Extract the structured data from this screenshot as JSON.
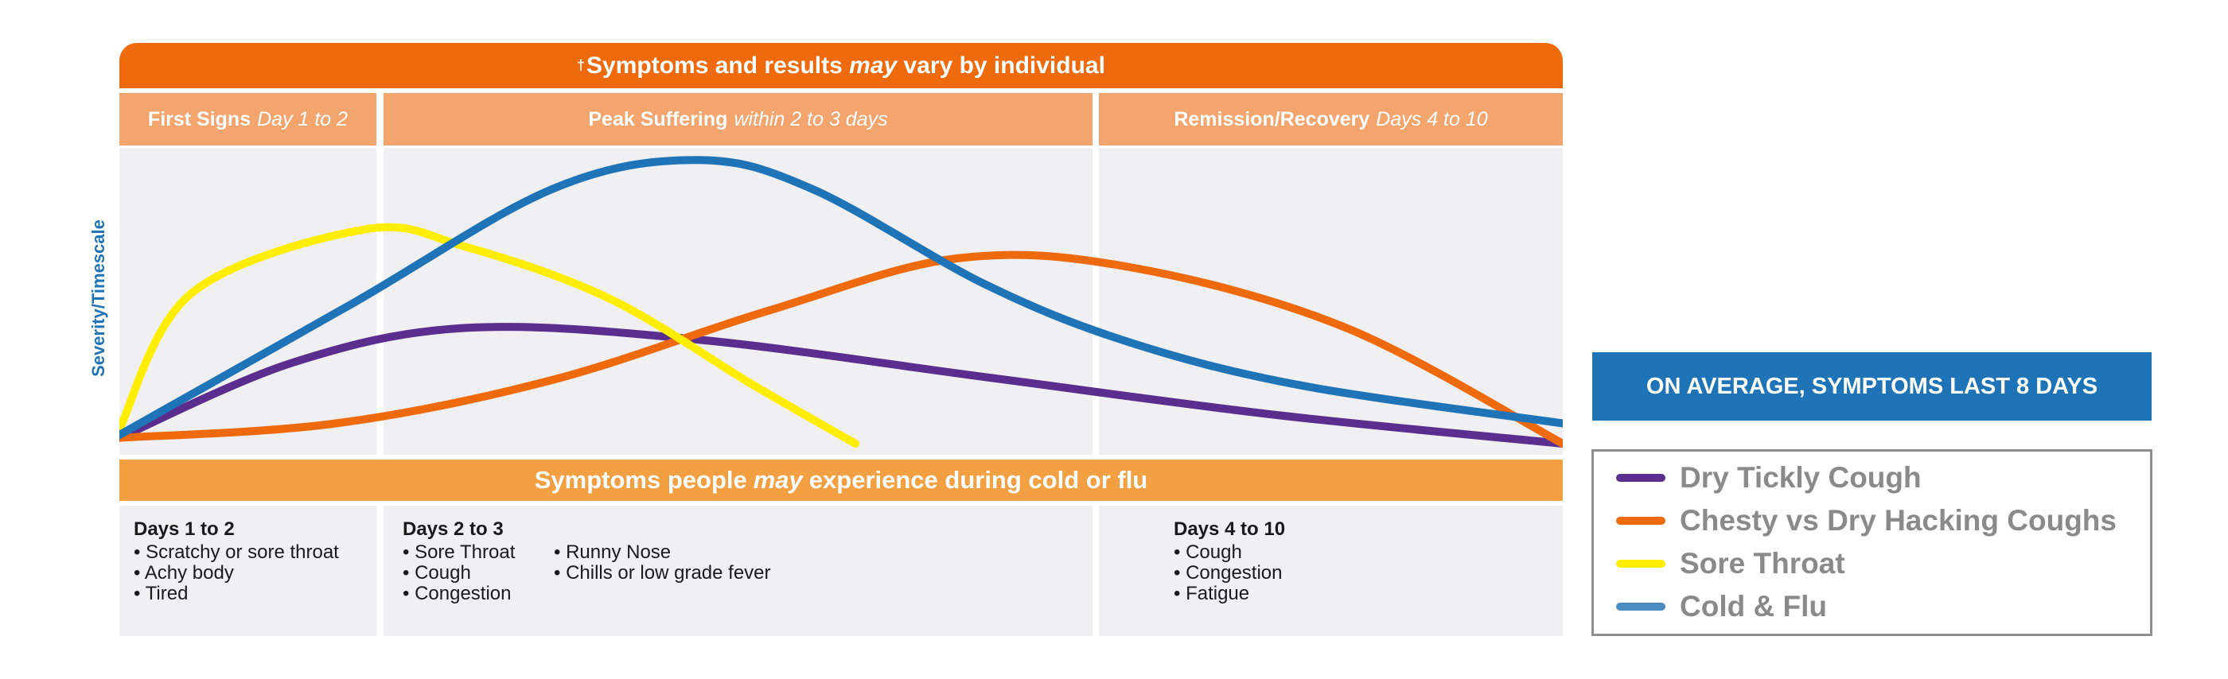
{
  "header": {
    "dagger": "†",
    "text_before": "Symptoms and results ",
    "text_em": "may",
    "text_after": " vary by individual"
  },
  "phases": [
    {
      "bold": "First Signs",
      "italic": "Day 1 to 2"
    },
    {
      "bold": "Peak Suffering",
      "italic": "within 2 to 3 days"
    },
    {
      "bold": "Remission/Recovery",
      "italic": "Days 4 to 10"
    }
  ],
  "mid_banner": {
    "text_before": "Symptoms people",
    "text_em": "may",
    "text_after": "experience during cold or flu"
  },
  "symptom_lists": [
    {
      "title": "Days 1 to 2",
      "items": [
        "Scratchy or sore throat",
        "Achy body",
        "Tired"
      ]
    },
    {
      "title": "Days 2 to 3",
      "items": [
        "Sore Throat",
        "Cough",
        "Congestion"
      ],
      "items2": [
        "Runny Nose",
        "Chills or low grade fever"
      ]
    },
    {
      "title": "Days 4 to 10",
      "items": [
        "Cough",
        "Congestion",
        "Fatigue"
      ]
    }
  ],
  "average_box": "ON AVERAGE, SYMPTOMS LAST 8 DAYS",
  "chart_data": {
    "type": "line",
    "title": "",
    "ylabel": "Severity/Timescale",
    "xlabel": "",
    "grid": false,
    "legend_position": "right",
    "series": [
      {
        "name": "Dry Tickly Cough",
        "color": "#5b2d8e",
        "width": 10,
        "x": [
          0,
          0.12,
          0.24,
          0.4,
          0.6,
          0.8,
          1.0
        ],
        "y": [
          0.02,
          0.28,
          0.4,
          0.36,
          0.23,
          0.1,
          0.0
        ]
      },
      {
        "name": "Chesty vs Dry Hacking Coughs",
        "color": "#ee6a0c",
        "width": 10,
        "x": [
          0,
          0.15,
          0.3,
          0.45,
          0.58,
          0.7,
          0.85,
          1.0
        ],
        "y": [
          0.02,
          0.07,
          0.22,
          0.46,
          0.64,
          0.61,
          0.4,
          0.0
        ]
      },
      {
        "name": "Sore Throat",
        "color": "#ffee00",
        "width": 10,
        "x": [
          0,
          0.05,
          0.17,
          0.24,
          0.34,
          0.44,
          0.51
        ],
        "y": [
          0.05,
          0.52,
          0.74,
          0.68,
          0.5,
          0.2,
          0.0
        ]
      },
      {
        "name": "Cold & Flu",
        "color": "#1f73b7",
        "width": 10,
        "x": [
          0,
          0.16,
          0.3,
          0.4,
          0.48,
          0.6,
          0.7,
          0.82,
          1.0
        ],
        "y": [
          0.03,
          0.48,
          0.88,
          0.98,
          0.88,
          0.55,
          0.35,
          0.2,
          0.07
        ]
      }
    ]
  },
  "legend": [
    {
      "label": "Dry Tickly Cough",
      "color": "#5b2d8e"
    },
    {
      "label": "Chesty vs Dry Hacking Coughs",
      "color": "#ee6a0c"
    },
    {
      "label": "Sore Throat",
      "color": "#ffee00"
    },
    {
      "label": "Cold & Flu",
      "color": "#4a8cc0"
    }
  ]
}
